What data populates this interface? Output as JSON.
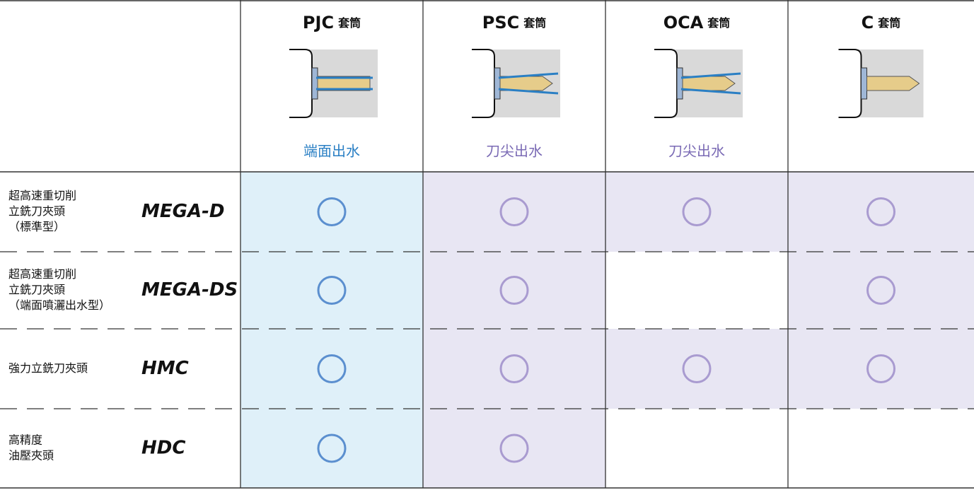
{
  "table": {
    "columns": [
      {
        "name": "PJC",
        "suffix": "套筒",
        "coolant": "端面出水"
      },
      {
        "name": "PSC",
        "suffix": "套筒",
        "coolant": "刀尖出水"
      },
      {
        "name": "OCA",
        "suffix": "套筒",
        "coolant": "刀尖出水"
      },
      {
        "name": "C",
        "suffix": "套筒"
      }
    ],
    "rows": [
      {
        "label": [
          "超高速重切削",
          "立銑刀夾頭",
          "（標準型）"
        ],
        "model": "MEGA-D",
        "compatible": [
          true,
          true,
          true,
          true
        ]
      },
      {
        "label": [
          "超高速重切削",
          "立銑刀夾頭",
          "（端面噴灑出水型）"
        ],
        "model": "MEGA-DS",
        "compatible": [
          true,
          true,
          false,
          true
        ]
      },
      {
        "label": [
          "強力立銑刀夾頭"
        ],
        "model": "HMC",
        "compatible": [
          true,
          true,
          true,
          true
        ]
      },
      {
        "label": [
          "高精度",
          "油壓夾頭"
        ],
        "model": "HDC",
        "compatible": [
          true,
          true,
          false,
          false
        ]
      }
    ]
  }
}
